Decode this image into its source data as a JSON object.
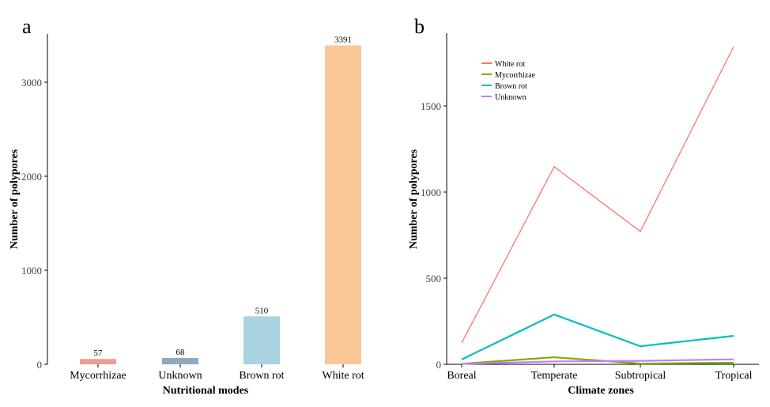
{
  "chart_data": [
    {
      "panel_label": "a",
      "type": "bar",
      "categories": [
        "Mycorrhizae",
        "Unknown",
        "Brown rot",
        "White rot"
      ],
      "values": [
        57,
        68,
        510,
        3391
      ],
      "data_labels": [
        "57",
        "68",
        "510",
        "3391"
      ],
      "colors": [
        "#E8A093",
        "#8FA9BE",
        "#A9D3E0",
        "#F9C795"
      ],
      "xlabel": "Nutritional modes",
      "ylabel": "Number of polypores",
      "ylim": [
        0,
        3500
      ],
      "yticks": [
        0,
        1000,
        2000,
        3000
      ],
      "grid": false
    },
    {
      "panel_label": "b",
      "type": "line",
      "x": [
        "Boreal",
        "Temperate",
        "Subtropical",
        "Tropical"
      ],
      "series": [
        {
          "name": "White rot",
          "color": "#F8766D",
          "values": [
            124,
            1147,
            771,
            1844
          ]
        },
        {
          "name": "Mycorrhizae",
          "color": "#7CAE00",
          "values": [
            3,
            41,
            4,
            9
          ]
        },
        {
          "name": "Brown rot",
          "color": "#00BFC4",
          "values": [
            28,
            289,
            105,
            165
          ]
        },
        {
          "name": "Unknown",
          "color": "#C77CFF",
          "values": [
            2,
            17,
            20,
            29
          ]
        }
      ],
      "xlabel": "Climate zones",
      "ylabel": "Number of polypores",
      "ylim": [
        0,
        1920
      ],
      "yticks": [
        0,
        500,
        1000,
        1500
      ],
      "legend": "top-left",
      "grid": false
    }
  ]
}
